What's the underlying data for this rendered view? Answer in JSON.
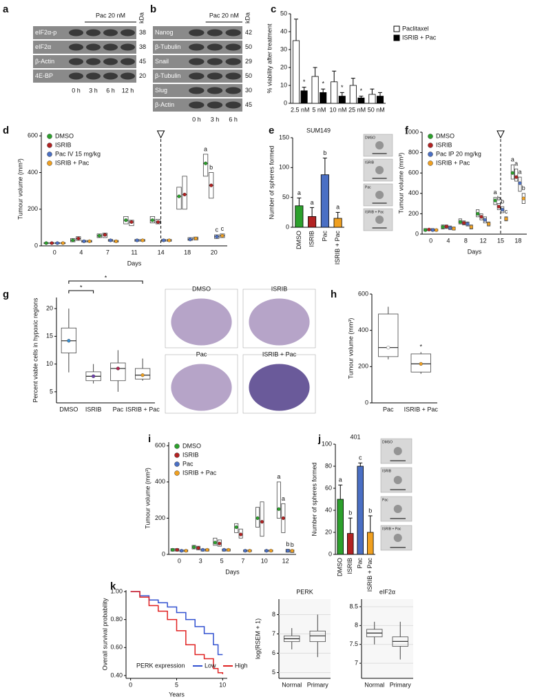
{
  "panel_labels": [
    "a",
    "b",
    "c",
    "d",
    "e",
    "f",
    "g",
    "h",
    "i",
    "j",
    "k"
  ],
  "blots": [
    {
      "treatment": "Pac 20 nM",
      "unit": "kDa",
      "rows": [
        "eIF2α-p",
        "eIF2α",
        "β-Actin",
        "4E-BP"
      ],
      "kda": [
        38,
        38,
        45,
        20
      ],
      "lanes": [
        "0 h",
        "3 h",
        "6 h",
        "12 h"
      ]
    },
    {
      "treatment": "Pac 20 nM",
      "unit": "kDa",
      "rows": [
        "Nanog",
        "β-Tubulin",
        "Snail",
        "β-Tubulin",
        "Slug",
        "β-Actin"
      ],
      "kda": [
        42,
        50,
        29,
        50,
        30,
        45
      ],
      "lanes": [
        "0 h",
        "3 h",
        "6 h"
      ]
    }
  ],
  "chart_data": [
    {
      "type": "bar",
      "ylabel": "% viability after treatment",
      "categories": [
        "2.5 nM",
        "5 nM",
        "10 nM",
        "25 nM",
        "50 nM"
      ],
      "ylim": [
        0,
        50
      ],
      "yticks": [
        0,
        10,
        20,
        30,
        40,
        50
      ],
      "legend": "right",
      "series": [
        {
          "name": "Paclitaxel",
          "color": "#ffffff",
          "values": [
            35,
            15,
            12,
            10,
            5
          ],
          "errors": [
            12,
            5,
            6,
            4,
            3
          ],
          "annotations": [
            null,
            null,
            null,
            null,
            null
          ]
        },
        {
          "name": "ISRIB + Pac",
          "color": "#000000",
          "values": [
            7,
            6,
            4,
            3,
            4
          ],
          "errors": [
            2,
            2,
            2,
            1,
            2
          ],
          "annotations": [
            "*",
            "*",
            "*",
            "*",
            null
          ]
        }
      ]
    },
    {
      "type": "box",
      "xlabel": "Days",
      "ylabel": "Tumour volume (mm³)",
      "categories": [
        "0",
        "4",
        "7",
        "11",
        "14",
        "18",
        "20"
      ],
      "ylim": [
        0,
        620
      ],
      "yticks": [
        0,
        200,
        400,
        600
      ],
      "legend": "top-left",
      "marker": "14",
      "series": [
        {
          "name": "DMSO",
          "color": "#2ca02c",
          "values": [
            15,
            30,
            55,
            140,
            140,
            270,
            450
          ],
          "q1": [
            12,
            22,
            45,
            120,
            125,
            200,
            380
          ],
          "q3": [
            18,
            40,
            65,
            160,
            160,
            320,
            500
          ],
          "annotations": [
            null,
            null,
            null,
            null,
            null,
            null,
            "a"
          ]
        },
        {
          "name": "ISRIB",
          "color": "#b22222",
          "values": [
            15,
            40,
            60,
            130,
            130,
            280,
            330
          ],
          "q1": [
            12,
            30,
            45,
            110,
            120,
            200,
            260
          ],
          "q3": [
            18,
            50,
            70,
            140,
            145,
            380,
            400
          ],
          "annotations": [
            null,
            null,
            null,
            null,
            null,
            null,
            "b"
          ]
        },
        {
          "name": "Pac IV 15 mg/kg",
          "color": "#4a6fc4",
          "values": [
            15,
            25,
            30,
            30,
            30,
            35,
            50
          ],
          "q1": [
            12,
            20,
            25,
            25,
            25,
            30,
            40
          ],
          "q3": [
            18,
            30,
            35,
            35,
            35,
            45,
            60
          ],
          "annotations": [
            null,
            null,
            null,
            null,
            null,
            null,
            "c"
          ]
        },
        {
          "name": "ISRIB + Pac",
          "color": "#f0a020",
          "values": [
            15,
            25,
            25,
            30,
            30,
            40,
            55
          ],
          "q1": [
            12,
            20,
            20,
            25,
            25,
            32,
            45
          ],
          "q3": [
            18,
            30,
            30,
            35,
            35,
            48,
            65
          ],
          "annotations": [
            null,
            null,
            null,
            null,
            null,
            null,
            "c"
          ]
        }
      ]
    },
    {
      "type": "bar",
      "title": "SUM149",
      "ylabel": "Number of spheres formed",
      "categories": [
        "DMSO",
        "ISRIB",
        "Pac",
        "ISRIB + Pac"
      ],
      "vertical_x_labels": true,
      "ylim": [
        0,
        150
      ],
      "yticks": [
        0,
        50,
        100,
        150
      ],
      "colors": [
        "#2ca02c",
        "#b22222",
        "#4a6fc4",
        "#f0a020"
      ],
      "series": [
        {
          "values": [
            36,
            18,
            88,
            15
          ],
          "errors": [
            13,
            15,
            28,
            10
          ],
          "annotations": [
            "a",
            "a",
            "b",
            "a"
          ]
        }
      ],
      "inset_labels": [
        "DMSO",
        "ISRIB",
        "Pac",
        "ISRIB + Pac"
      ]
    },
    {
      "type": "box",
      "xlabel": "Days",
      "ylabel": "Tumour volume (mm³)",
      "categories": [
        "0",
        "4",
        "8",
        "12",
        "15",
        "18"
      ],
      "ylim": [
        0,
        1000
      ],
      "yticks": [
        0,
        200,
        400,
        600,
        800,
        1000
      ],
      "legend": "top-left",
      "marker": "15",
      "series": [
        {
          "name": "DMSO",
          "color": "#2ca02c",
          "values": [
            40,
            70,
            120,
            200,
            330,
            600
          ],
          "q1": [
            30,
            50,
            100,
            170,
            290,
            540
          ],
          "q3": [
            55,
            90,
            150,
            240,
            360,
            680
          ],
          "annotations": [
            null,
            null,
            null,
            null,
            "a",
            "a"
          ]
        },
        {
          "name": "ISRIB",
          "color": "#b22222",
          "values": [
            45,
            75,
            110,
            170,
            270,
            560
          ],
          "q1": [
            35,
            55,
            90,
            140,
            240,
            520
          ],
          "q3": [
            55,
            90,
            130,
            200,
            300,
            640
          ],
          "annotations": [
            null,
            null,
            null,
            null,
            "b",
            "a"
          ]
        },
        {
          "name": "Pac IP 20 mg/kg",
          "color": "#4a6fc4",
          "values": [
            40,
            60,
            100,
            140,
            240,
            500
          ],
          "q1": [
            30,
            45,
            80,
            110,
            210,
            420
          ],
          "q3": [
            55,
            80,
            120,
            170,
            270,
            560
          ],
          "annotations": [
            null,
            null,
            null,
            null,
            "b",
            "a"
          ]
        },
        {
          "name": "ISRIB + Pac",
          "color": "#f0a020",
          "values": [
            40,
            55,
            70,
            100,
            150,
            350
          ],
          "q1": [
            30,
            40,
            50,
            80,
            130,
            300
          ],
          "q3": [
            50,
            70,
            90,
            120,
            170,
            400
          ],
          "annotations": [
            null,
            null,
            null,
            null,
            "c",
            "b"
          ]
        }
      ]
    },
    {
      "type": "box",
      "ylabel": "Percent viable cells in hypoxic regions",
      "categories": [
        "DMSO",
        "ISRIB",
        "Pac",
        "ISRIB + Pac"
      ],
      "ylim": [
        3,
        22
      ],
      "yticks": [
        5,
        10,
        15,
        20
      ],
      "colors": [
        "#3a8fd0",
        "#7040b0",
        "#b22250",
        "#f0a020"
      ],
      "series": [
        {
          "values": [
            14.2,
            7.8,
            9.2,
            8
          ],
          "q1": [
            12,
            7,
            7,
            7.3
          ],
          "q3": [
            16.5,
            8.6,
            10.2,
            9.2
          ],
          "lo": [
            8.5,
            6.5,
            5,
            7
          ],
          "hi": [
            20,
            10,
            12.5,
            11
          ]
        }
      ],
      "significance": [
        {
          "from": "DMSO",
          "to": "ISRIB",
          "label": "*"
        },
        {
          "from": "DMSO",
          "to": "ISRIB + Pac",
          "label": "*"
        }
      ],
      "inset_labels": [
        "DMSO",
        "ISRIB",
        "Pac",
        "ISRIB + Pac"
      ]
    },
    {
      "type": "box",
      "ylabel": "Tumour volume (mm³)",
      "categories": [
        "Pac",
        "ISRIB + Pac"
      ],
      "ylim": [
        0,
        600
      ],
      "yticks": [
        0,
        200,
        400,
        600
      ],
      "colors": [
        "#ffffff",
        "#f0a020"
      ],
      "series": [
        {
          "values": [
            305,
            215
          ],
          "q1": [
            255,
            170
          ],
          "q3": [
            490,
            270
          ],
          "lo": [
            240,
            160
          ],
          "hi": [
            530,
            280
          ],
          "annotations": [
            null,
            "*"
          ]
        }
      ]
    },
    {
      "type": "box",
      "xlabel": "Days",
      "ylabel": "Tumour volume (mm³)",
      "categories": [
        "0",
        "3",
        "5",
        "7",
        "10",
        "12"
      ],
      "ylim": [
        0,
        620
      ],
      "yticks": [
        0,
        200,
        400,
        600
      ],
      "legend": "top-left",
      "series": [
        {
          "name": "DMSO",
          "color": "#2ca02c",
          "values": [
            25,
            40,
            65,
            150,
            200,
            250
          ],
          "q1": [
            18,
            30,
            50,
            120,
            150,
            200
          ],
          "q3": [
            32,
            50,
            90,
            170,
            260,
            400
          ],
          "annotations": [
            null,
            null,
            null,
            null,
            null,
            "a"
          ]
        },
        {
          "name": "ISRIB",
          "color": "#b22222",
          "values": [
            25,
            35,
            60,
            110,
            180,
            200
          ],
          "q1": [
            18,
            25,
            45,
            90,
            100,
            120
          ],
          "q3": [
            32,
            45,
            80,
            140,
            290,
            280
          ],
          "annotations": [
            null,
            null,
            null,
            null,
            null,
            "a"
          ]
        },
        {
          "name": "Pac",
          "color": "#4a6fc4",
          "values": [
            20,
            25,
            25,
            20,
            20,
            20
          ],
          "q1": [
            15,
            18,
            18,
            15,
            15,
            12
          ],
          "q3": [
            25,
            30,
            30,
            25,
            25,
            28
          ],
          "annotations": [
            null,
            null,
            null,
            null,
            null,
            "b"
          ]
        },
        {
          "name": "ISRIB + Pac",
          "color": "#f0a020",
          "values": [
            20,
            25,
            25,
            20,
            20,
            20
          ],
          "q1": [
            15,
            18,
            18,
            15,
            15,
            10
          ],
          "q3": [
            25,
            30,
            30,
            25,
            25,
            25
          ],
          "annotations": [
            null,
            null,
            null,
            null,
            null,
            "b"
          ]
        }
      ]
    },
    {
      "type": "bar",
      "title": "401",
      "ylabel": "Number of spheres formed",
      "categories": [
        "DMSO",
        "ISRIB",
        "Pac",
        "ISRIB + Pac"
      ],
      "vertical_x_labels": true,
      "ylim": [
        0,
        100
      ],
      "yticks": [
        0,
        20,
        40,
        60,
        80,
        100
      ],
      "colors": [
        "#2ca02c",
        "#b22222",
        "#4a6fc4",
        "#f0a020"
      ],
      "series": [
        {
          "values": [
            50,
            19,
            80,
            20
          ],
          "errors": [
            13,
            14,
            3,
            15
          ],
          "annotations": [
            "a",
            "b",
            "c",
            "b"
          ]
        }
      ],
      "inset_labels": [
        "DMSO",
        "ISRIB",
        "Pac",
        "ISRIB + Pac"
      ]
    },
    {
      "type": "line",
      "xlabel": "Years",
      "ylabel": "Overall survival probability",
      "xlim": [
        -0.5,
        10.5
      ],
      "xticks": [
        0,
        5,
        10
      ],
      "ylim": [
        0.38,
        1.01
      ],
      "yticks": [
        {
          "value": 0.4,
          "label": "0.40"
        },
        {
          "value": 0.6,
          "label": "0.60"
        },
        {
          "value": 0.8,
          "label": "0.80"
        },
        {
          "value": 1,
          "label": "1.00"
        }
      ],
      "legend": "bottom",
      "legend_title": "PERK expression",
      "series": [
        {
          "name": "Low",
          "color": "#3050d0",
          "x": [
            0,
            1,
            2,
            3,
            4,
            5,
            6,
            7,
            8,
            9,
            9.5,
            10
          ],
          "values": [
            1,
            0.97,
            0.94,
            0.92,
            0.89,
            0.85,
            0.8,
            0.75,
            0.7,
            0.62,
            0.55,
            0.55
          ]
        },
        {
          "name": "High",
          "color": "#e02020",
          "x": [
            0,
            1,
            2,
            3,
            4,
            5,
            6,
            7,
            8,
            9,
            9.5,
            10
          ],
          "values": [
            1,
            0.96,
            0.9,
            0.86,
            0.8,
            0.72,
            0.62,
            0.55,
            0.52,
            0.45,
            0.42,
            0.41
          ]
        }
      ]
    },
    {
      "type": "box",
      "title": "PERK",
      "ylabel": "log(RSEM + 1)",
      "categories": [
        "Normal",
        "Primary"
      ],
      "ylim": [
        4.7,
        8.8
      ],
      "yticks": [
        5,
        6,
        7,
        8
      ],
      "grid": true,
      "colors": [
        "#999999",
        "#999999"
      ],
      "series": [
        {
          "values": [
            6.75,
            6.9
          ],
          "q1": [
            6.6,
            6.6
          ],
          "q3": [
            6.9,
            7.15
          ],
          "lo": [
            6.2,
            5.8
          ],
          "hi": [
            7.3,
            8.0
          ]
        }
      ]
    },
    {
      "type": "box",
      "title": "eIF2α",
      "categories": [
        "Normal",
        "Primary"
      ],
      "ylim": [
        6.6,
        8.7
      ],
      "yticks": [
        7,
        7.5,
        8,
        8.5
      ],
      "grid": true,
      "colors": [
        "#999999",
        "#999999"
      ],
      "series": [
        {
          "values": [
            7.8,
            7.58
          ],
          "q1": [
            7.7,
            7.45
          ],
          "q3": [
            7.9,
            7.7
          ],
          "lo": [
            7.5,
            7.1
          ],
          "hi": [
            8.1,
            8.1
          ]
        }
      ]
    }
  ]
}
